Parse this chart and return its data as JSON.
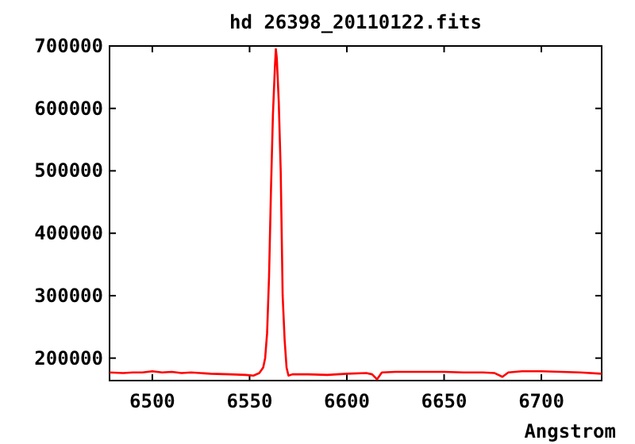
{
  "chart_data": {
    "type": "line",
    "title": "hd 26398_20110122.fits",
    "xlabel": "Angstrom",
    "xlim": [
      6478,
      6731
    ],
    "xticks": [
      6500,
      6550,
      6600,
      6650,
      6700
    ],
    "ylim": [
      164000,
      700000
    ],
    "yticks": [
      200000,
      300000,
      400000,
      500000,
      600000,
      700000
    ],
    "grid": false,
    "marker": "none",
    "line_style": "solid",
    "series": [
      {
        "color": "#ff0000",
        "x": [
          6478,
          6485,
          6490,
          6495,
          6500,
          6505,
          6510,
          6515,
          6520,
          6530,
          6540,
          6548,
          6552,
          6555,
          6557,
          6558,
          6559,
          6560,
          6561,
          6562,
          6563,
          6563.5,
          6564,
          6565,
          6566,
          6567,
          6568,
          6569,
          6570,
          6572,
          6580,
          6590,
          6600,
          6610,
          6613,
          6615.5,
          6618,
          6625,
          6635,
          6650,
          6660,
          6670,
          6676,
          6680,
          6683,
          6690,
          6700,
          6710,
          6720,
          6731
        ],
        "values": [
          177000,
          176000,
          177000,
          177000,
          179000,
          177000,
          178000,
          176000,
          177000,
          175000,
          174000,
          173000,
          172000,
          176000,
          185000,
          200000,
          240000,
          330000,
          470000,
          590000,
          665000,
          695000,
          680000,
          610000,
          500000,
          300000,
          230000,
          185000,
          172000,
          174000,
          174000,
          173000,
          175000,
          176000,
          174000,
          166000,
          177000,
          178000,
          178000,
          178000,
          177000,
          177000,
          176000,
          170000,
          177000,
          179000,
          179000,
          178000,
          177000,
          175000
        ]
      }
    ]
  }
}
